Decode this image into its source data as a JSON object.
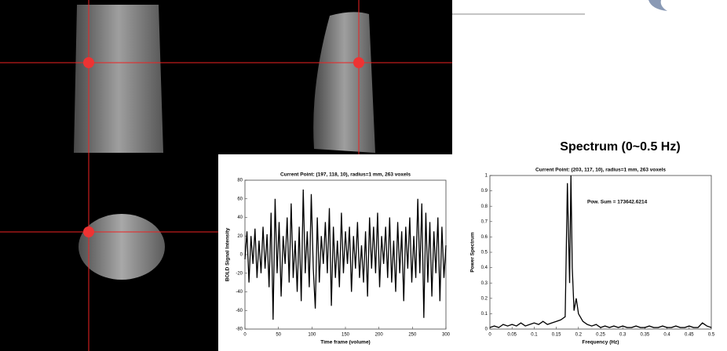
{
  "slide": {
    "heading": "Spectrum (0~0.5 Hz)"
  },
  "chart_data": [
    {
      "type": "line",
      "title": "Current Point: (197, 118, 10), radius=1 mm, 263 voxels",
      "x_label": "Time frame (volume)",
      "y_label": "BOLD Signal Intensity",
      "xlim": [
        0,
        300
      ],
      "xticks": [
        0,
        50,
        100,
        150,
        200,
        250,
        300
      ],
      "ylim": [
        -80,
        80
      ],
      "yticks": [
        -80,
        -60,
        -40,
        -20,
        0,
        20,
        40,
        60,
        80
      ],
      "color": "#000000",
      "x": [
        0,
        3,
        6,
        9,
        12,
        15,
        18,
        21,
        24,
        27,
        30,
        33,
        36,
        39,
        42,
        45,
        48,
        51,
        54,
        57,
        60,
        63,
        66,
        69,
        72,
        75,
        78,
        81,
        84,
        87,
        90,
        93,
        96,
        99,
        102,
        105,
        108,
        111,
        114,
        117,
        120,
        123,
        126,
        129,
        132,
        135,
        138,
        141,
        144,
        147,
        150,
        153,
        156,
        159,
        162,
        165,
        168,
        171,
        174,
        177,
        180,
        183,
        186,
        189,
        192,
        195,
        198,
        201,
        204,
        207,
        210,
        213,
        216,
        219,
        222,
        225,
        228,
        231,
        234,
        237,
        240,
        243,
        246,
        249,
        252,
        255,
        258,
        261,
        264,
        267,
        270,
        273,
        276,
        279,
        282,
        285,
        288,
        291,
        294,
        297,
        300
      ],
      "values": [
        -5,
        25,
        -30,
        20,
        -10,
        28,
        -25,
        15,
        -20,
        30,
        -15,
        22,
        -35,
        45,
        -70,
        60,
        -20,
        35,
        -45,
        20,
        -10,
        40,
        -30,
        55,
        -25,
        15,
        -40,
        30,
        -50,
        70,
        -20,
        25,
        -35,
        65,
        -15,
        -58,
        40,
        -30,
        20,
        -10,
        35,
        -20,
        50,
        -55,
        30,
        -25,
        15,
        -35,
        45,
        -20,
        25,
        -10,
        30,
        -40,
        20,
        -15,
        35,
        -25,
        10,
        -30,
        25,
        -45,
        40,
        -15,
        30,
        -20,
        45,
        -35,
        20,
        -10,
        30,
        -25,
        40,
        -30,
        15,
        -40,
        35,
        -20,
        25,
        -50,
        30,
        -15,
        40,
        -30,
        20,
        -25,
        60,
        -20,
        55,
        -68,
        45,
        -30,
        35,
        -45,
        25,
        -20,
        40,
        -50,
        30,
        -25,
        10
      ]
    },
    {
      "type": "line",
      "title": "Current Point: (203, 117, 10), radius=1 mm, 263 voxels",
      "annotation": "Pow. Sum = 173642.6214",
      "x_label": "Frequency (Hz)",
      "y_label": "Power Spectrum",
      "xlim": [
        0,
        0.5
      ],
      "xticks": [
        0,
        0.05,
        0.1,
        0.15,
        0.2,
        0.25,
        0.3,
        0.35,
        0.4,
        0.45,
        0.5
      ],
      "ylim": [
        0,
        1
      ],
      "yticks": [
        0,
        0.1,
        0.2,
        0.3,
        0.4,
        0.5,
        0.6,
        0.7,
        0.8,
        0.9,
        1
      ],
      "color": "#000000",
      "x": [
        0,
        0.01,
        0.02,
        0.03,
        0.04,
        0.05,
        0.06,
        0.07,
        0.08,
        0.09,
        0.1,
        0.11,
        0.12,
        0.13,
        0.14,
        0.15,
        0.16,
        0.17,
        0.175,
        0.18,
        0.183,
        0.186,
        0.19,
        0.195,
        0.2,
        0.21,
        0.22,
        0.23,
        0.24,
        0.25,
        0.26,
        0.27,
        0.28,
        0.29,
        0.3,
        0.31,
        0.32,
        0.33,
        0.34,
        0.35,
        0.36,
        0.37,
        0.38,
        0.39,
        0.4,
        0.41,
        0.42,
        0.43,
        0.44,
        0.45,
        0.46,
        0.47,
        0.48,
        0.49,
        0.5
      ],
      "values": [
        0.01,
        0.02,
        0.01,
        0.03,
        0.02,
        0.03,
        0.02,
        0.04,
        0.02,
        0.03,
        0.04,
        0.03,
        0.05,
        0.03,
        0.04,
        0.05,
        0.06,
        0.08,
        0.95,
        0.3,
        1,
        0.4,
        0.12,
        0.2,
        0.1,
        0.05,
        0.03,
        0.02,
        0.03,
        0.01,
        0.02,
        0.01,
        0.02,
        0.01,
        0.02,
        0.01,
        0.01,
        0.02,
        0.01,
        0.01,
        0.02,
        0.01,
        0.01,
        0.02,
        0.01,
        0.01,
        0.02,
        0.01,
        0.01,
        0.02,
        0.01,
        0.01,
        0.04,
        0.02,
        0.01
      ]
    }
  ]
}
